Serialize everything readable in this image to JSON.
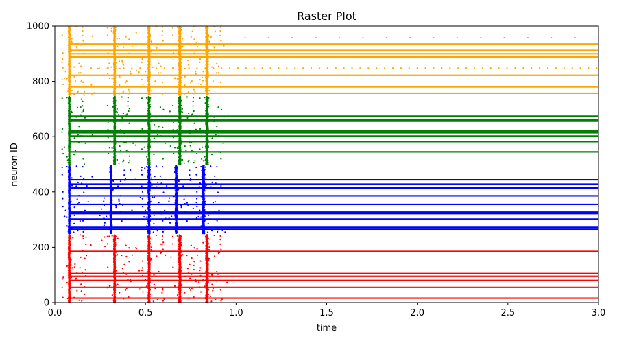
{
  "chart_data": {
    "type": "scatter",
    "title": "Raster Plot",
    "xlabel": "time",
    "ylabel": "neuron ID",
    "xlim": [
      0.0,
      3.0
    ],
    "ylim": [
      0,
      1000
    ],
    "x_ticks": [
      "0.0",
      "0.5",
      "1.0",
      "1.5",
      "2.0",
      "2.5",
      "3.0"
    ],
    "y_ticks": [
      "0",
      "200",
      "400",
      "600",
      "800",
      "1000"
    ],
    "grid": false,
    "bursts": [
      0.08,
      0.33,
      0.52,
      0.69,
      0.84
    ],
    "series": [
      {
        "color": "#ff0000",
        "id_range": [
          0,
          245
        ],
        "burst_times": [
          0.08,
          0.33,
          0.52,
          0.69,
          0.84
        ],
        "tonic_neurons": [
          16,
          55,
          80,
          95,
          105,
          185
        ]
      },
      {
        "color": "#0000ff",
        "id_range": [
          250,
          495
        ],
        "burst_times": [
          0.08,
          0.31,
          0.52,
          0.67,
          0.82
        ],
        "tonic_neurons": [
          265,
          272,
          302,
          322,
          327,
          355,
          386,
          414,
          428,
          444
        ]
      },
      {
        "color": "#008000",
        "id_range": [
          500,
          745
        ],
        "burst_times": [
          0.08,
          0.33,
          0.52,
          0.69,
          0.84
        ],
        "tonic_neurons": [
          545,
          582,
          602,
          614,
          620,
          656,
          660,
          674
        ]
      },
      {
        "color": "#ffa500",
        "id_range": [
          750,
          1000
        ],
        "burst_times": [
          0.08,
          0.33,
          0.52,
          0.69,
          0.84
        ],
        "tonic_neurons": [
          757,
          780,
          822,
          888,
          900,
          912,
          935
        ],
        "sparse_rows": [
          {
            "neuron": 848,
            "x_start": 0.2,
            "x_end": 3.0,
            "step": 0.045
          },
          {
            "neuron": 958,
            "x_start": 1.05,
            "x_end": 3.0,
            "step": 0.13
          }
        ]
      }
    ]
  }
}
